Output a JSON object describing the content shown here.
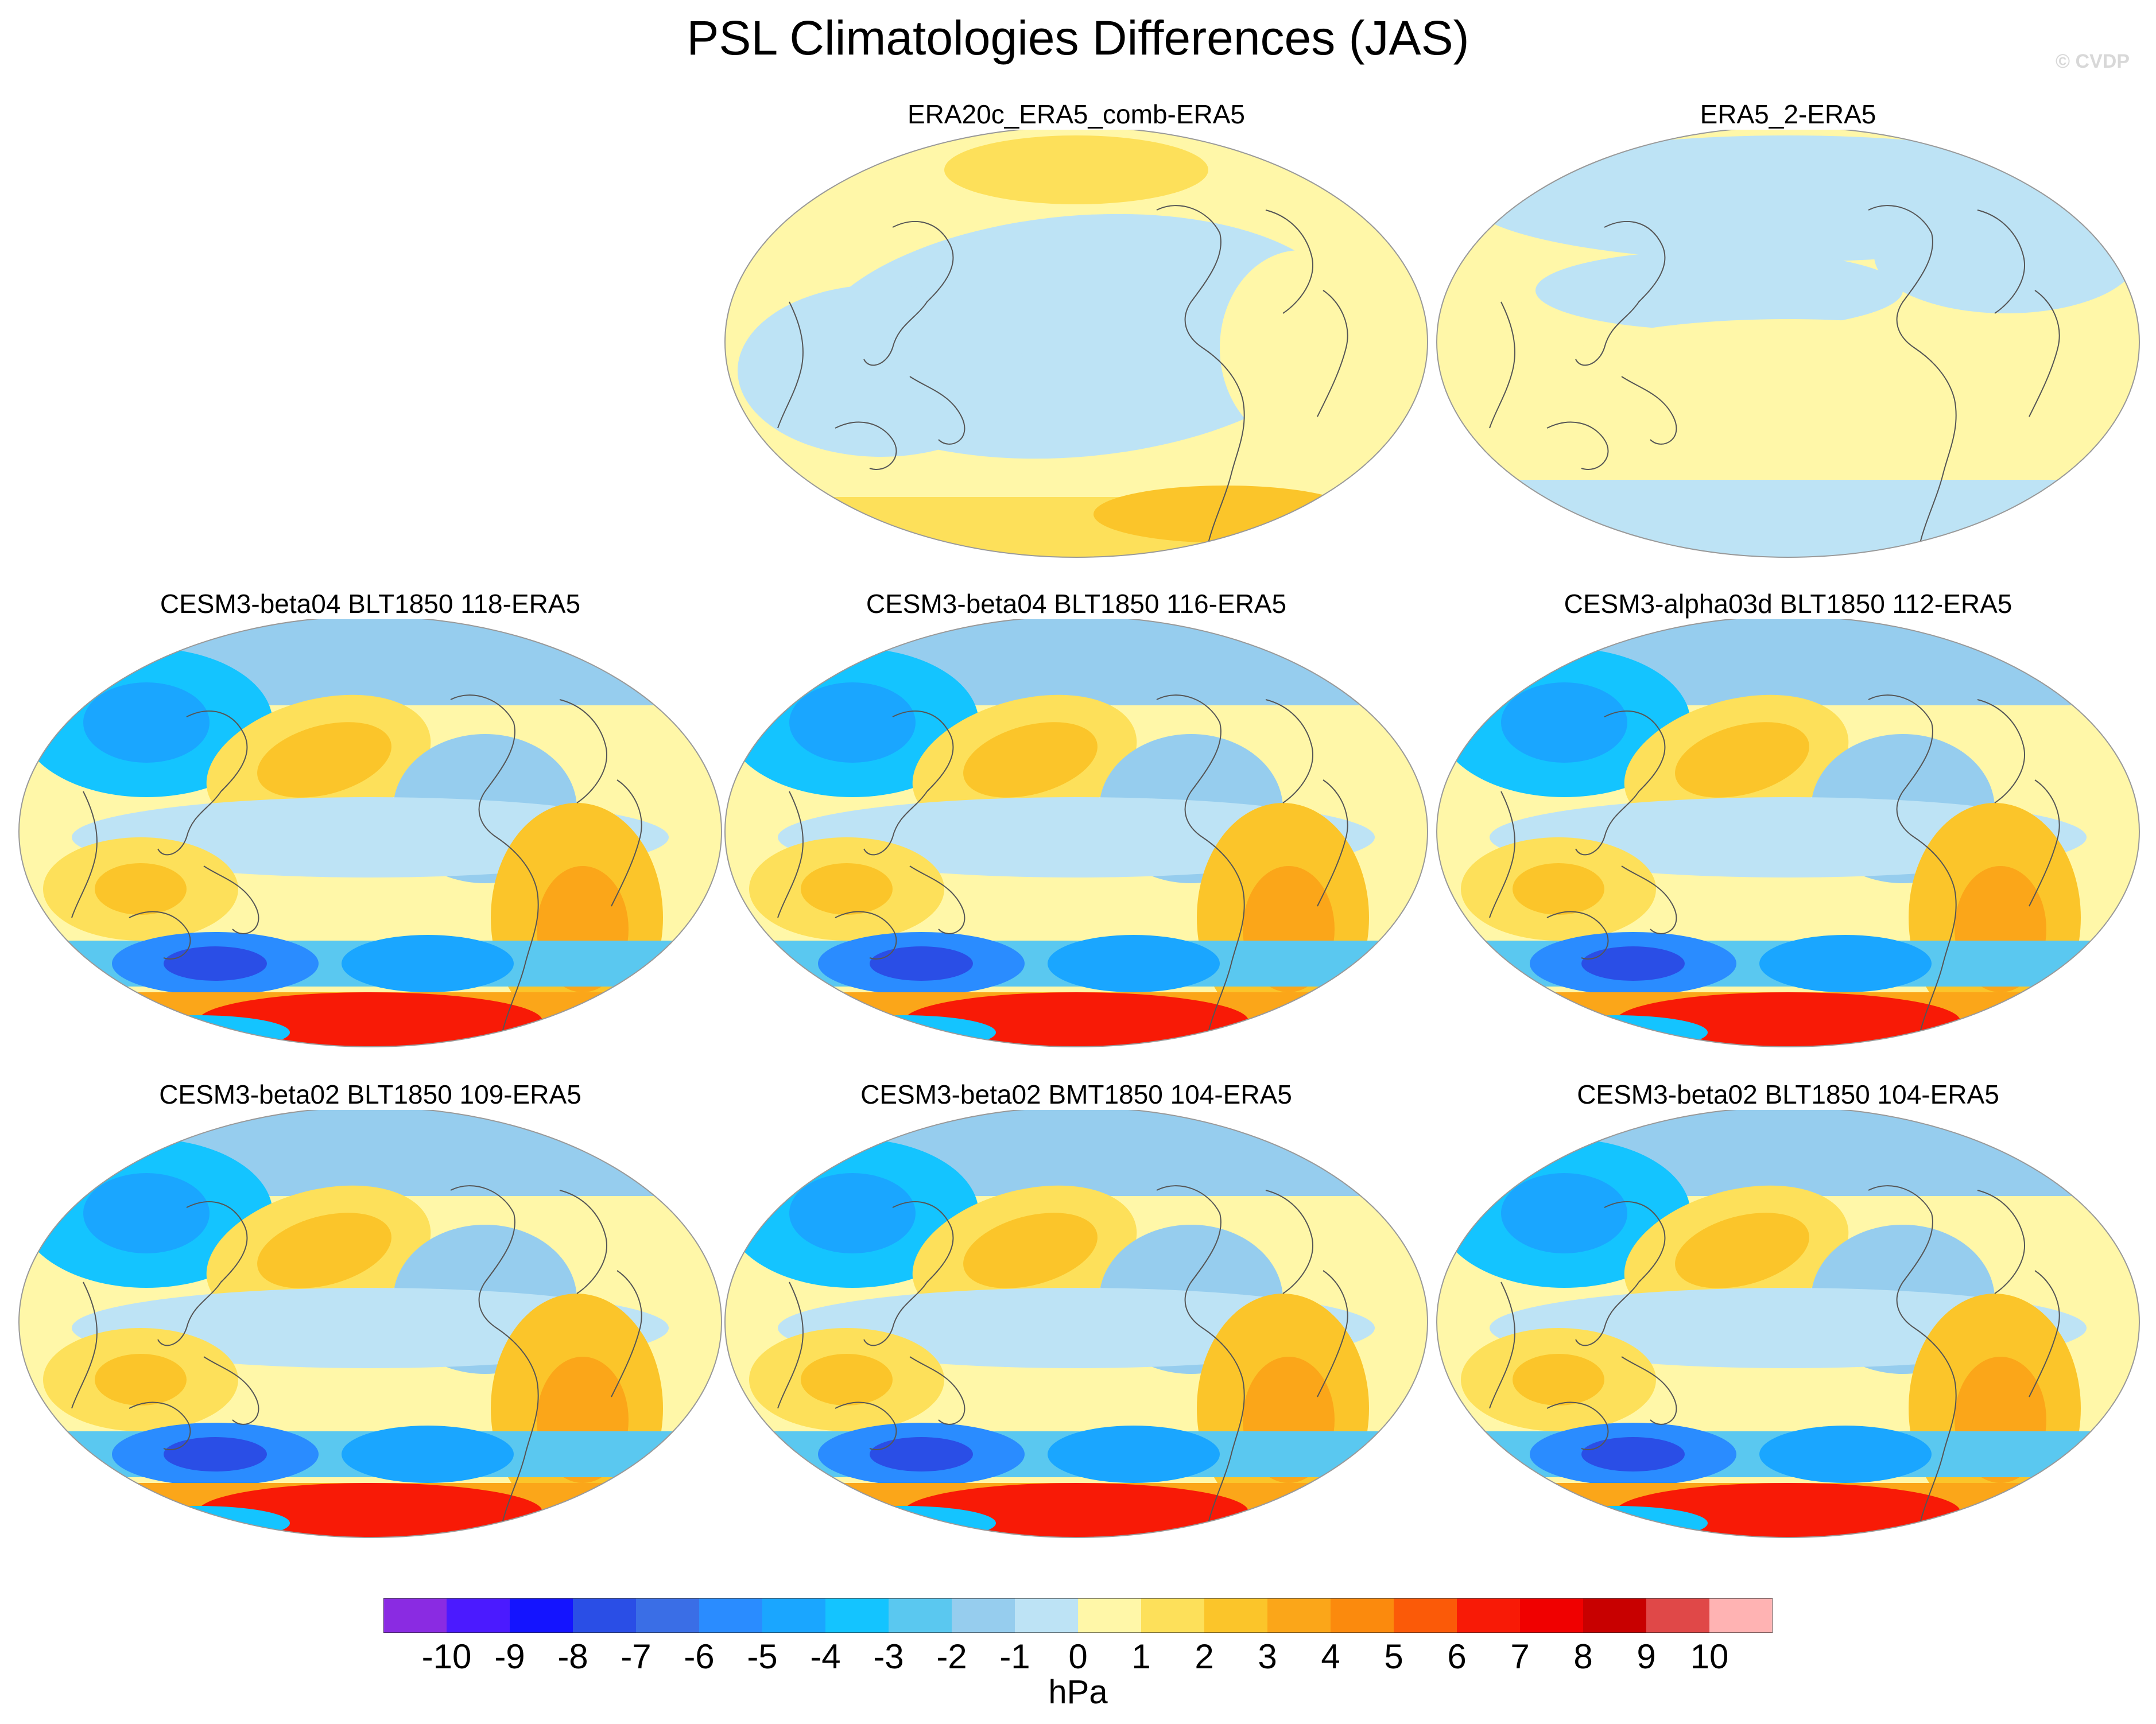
{
  "title": "PSL Climatologies Differences (JAS)",
  "watermark": "© CVDP",
  "panels": [
    {
      "label": "ERA20c_ERA5_comb-ERA5",
      "style": "obs_a"
    },
    {
      "label": "ERA5_2-ERA5",
      "style": "obs_b"
    },
    {
      "label": "CESM3-beta04 BLT1850 118-ERA5",
      "style": "model"
    },
    {
      "label": "CESM3-beta04 BLT1850 116-ERA5",
      "style": "model"
    },
    {
      "label": "CESM3-alpha03d BLT1850 112-ERA5",
      "style": "model"
    },
    {
      "label": "CESM3-beta02 BLT1850 109-ERA5",
      "style": "model"
    },
    {
      "label": "CESM3-beta02 BMT1850 104-ERA5",
      "style": "model"
    },
    {
      "label": "CESM3-beta02 BLT1850 104-ERA5",
      "style": "model"
    }
  ],
  "colorbar": {
    "labels": [
      "-10",
      "-9",
      "-8",
      "-7",
      "-6",
      "-5",
      "-4",
      "-3",
      "-2",
      "-1",
      "0",
      "1",
      "2",
      "3",
      "4",
      "5",
      "6",
      "7",
      "8",
      "9",
      "10"
    ],
    "colors": [
      "#8a2be2",
      "#4b1aff",
      "#1414ff",
      "#2a4ee6",
      "#3a6ee6",
      "#2a8cff",
      "#1aa6ff",
      "#14c4ff",
      "#5ac8f0",
      "#96cdee",
      "#bde3f5",
      "#fff7a8",
      "#fde05a",
      "#fbc52a",
      "#fba619",
      "#fb8a0d",
      "#fb5a08",
      "#f81a06",
      "#f00000",
      "#c80000",
      "#e04848",
      "#ffb3b3"
    ],
    "units": "hPa"
  }
}
